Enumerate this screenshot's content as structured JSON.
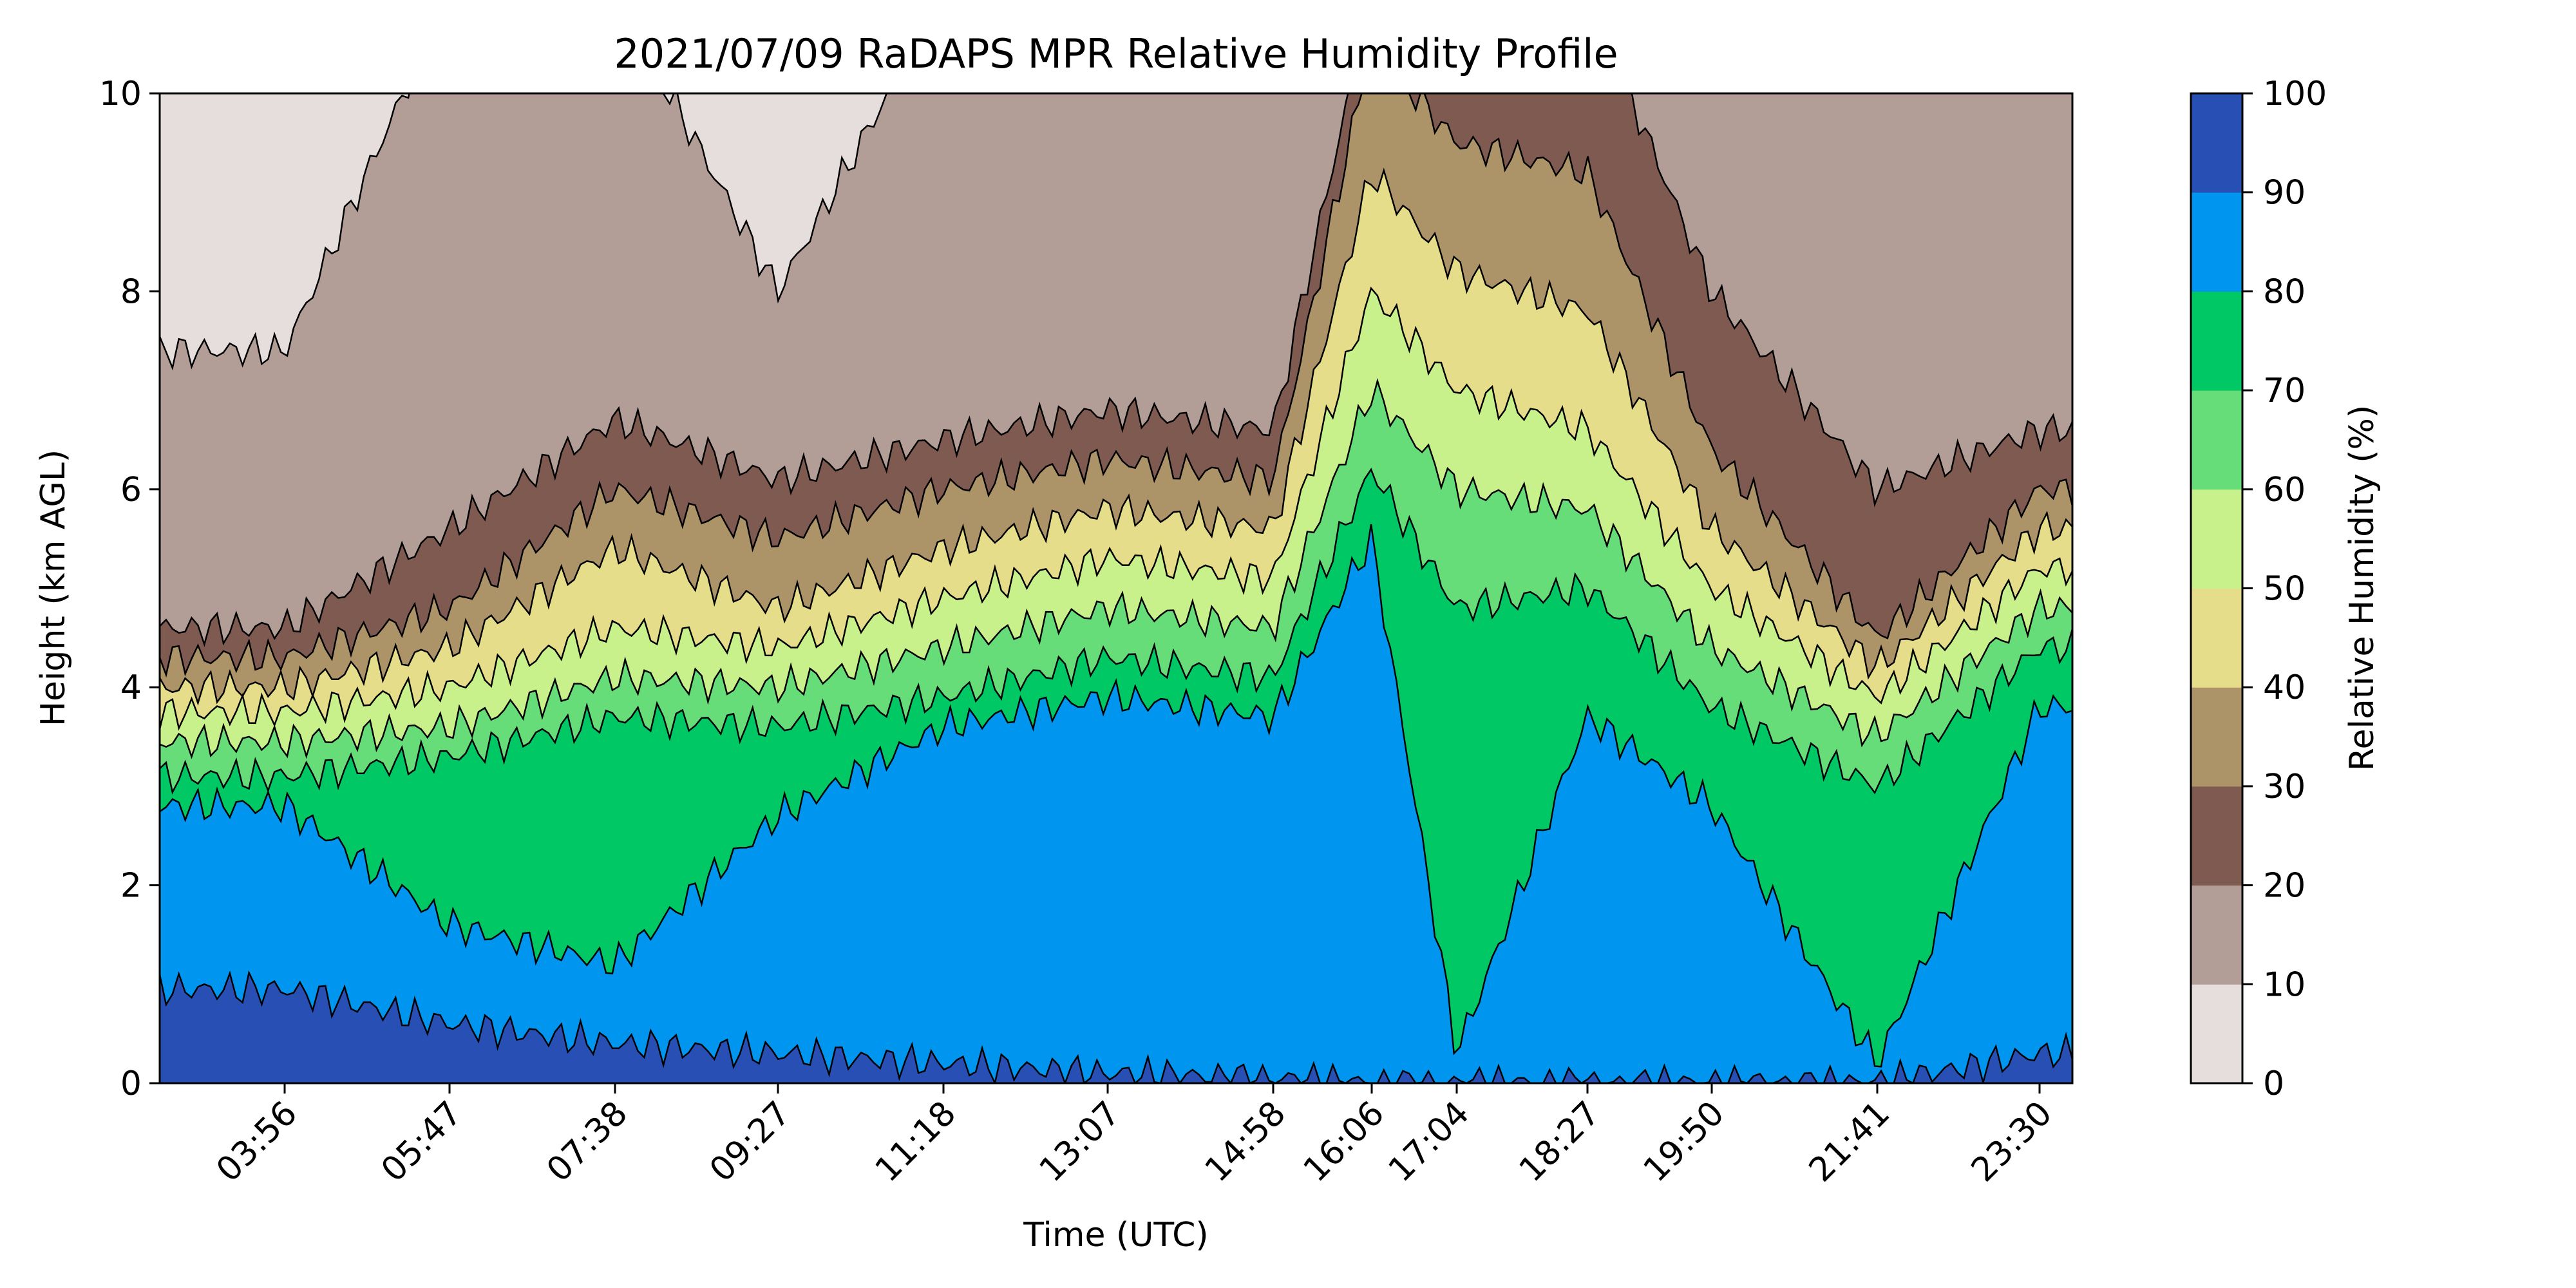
{
  "chart_data": {
    "type": "heatmap",
    "title": "2021/07/09 RaDAPS MPR Relative Humidity Profile",
    "xlabel": "Time (UTC)",
    "ylabel": "Height (km AGL)",
    "colorbar_label": "Relative Humidity (%)",
    "x_ticks": [
      "03:56",
      "05:47",
      "07:38",
      "09:27",
      "11:18",
      "13:07",
      "14:58",
      "16:06",
      "17:04",
      "18:27",
      "19:50",
      "21:41",
      "23:30"
    ],
    "y_ticks": [
      0,
      2,
      4,
      6,
      8,
      10
    ],
    "ylim": [
      0,
      10
    ],
    "colorbar_ticks": [
      0,
      10,
      20,
      30,
      40,
      50,
      60,
      70,
      80,
      90,
      100
    ],
    "levels": [
      0,
      10,
      20,
      30,
      40,
      50,
      60,
      70,
      80,
      90,
      100
    ],
    "level_colors": [
      "#e6dedc",
      "#b39d97",
      "#7f5a51",
      "#ad9468",
      "#e6dd8a",
      "#c8f18c",
      "#66dd78",
      "#00c864",
      "#0096f0",
      "#2850b4"
    ],
    "rh_profile_anchors": [
      {
        "t": "03:56",
        "b": [
          0.05,
          0.95,
          2.8,
          3.1,
          3.45,
          3.75,
          4.0,
          4.3,
          4.6,
          7.4
        ]
      },
      {
        "t": "05:47",
        "b": [
          0,
          0.6,
          1.6,
          3.3,
          3.6,
          4.0,
          4.4,
          4.8,
          5.6,
          11
        ]
      },
      {
        "t": "07:38",
        "b": [
          0,
          0.4,
          1.2,
          3.7,
          4.1,
          4.6,
          5.4,
          6.0,
          6.7,
          11
        ]
      },
      {
        "t": "09:27",
        "b": [
          0,
          0.3,
          2.7,
          3.6,
          4.0,
          4.4,
          4.8,
          5.5,
          6.1,
          8.0
        ]
      },
      {
        "t": "11:18",
        "b": [
          0,
          0.2,
          3.6,
          3.9,
          4.4,
          4.9,
          5.4,
          6.0,
          6.5,
          11
        ]
      },
      {
        "t": "13:07",
        "b": [
          0,
          0.1,
          3.9,
          4.3,
          4.8,
          5.3,
          5.8,
          6.3,
          6.8,
          11
        ]
      },
      {
        "t": "14:58",
        "b": [
          0,
          0.05,
          3.7,
          4.1,
          4.6,
          5.1,
          5.6,
          6.1,
          6.6,
          11
        ]
      },
      {
        "t": "16:06",
        "b": [
          0,
          0,
          5.5,
          6.2,
          7.0,
          8.0,
          9.2,
          10.5,
          11,
          11
        ]
      },
      {
        "t": "17:04",
        "b": [
          0,
          0,
          0.3,
          4.8,
          6.0,
          7.0,
          8.2,
          9.5,
          11,
          11
        ]
      },
      {
        "t": "18:27",
        "b": [
          0,
          0,
          3.7,
          5.0,
          5.8,
          6.6,
          7.8,
          9.2,
          11,
          11
        ]
      },
      {
        "t": "19:50",
        "b": [
          0,
          0,
          2.8,
          3.8,
          4.4,
          5.0,
          5.6,
          6.4,
          8.0,
          11
        ]
      },
      {
        "t": "21:41",
        "b": [
          0,
          0,
          0.2,
          3.0,
          3.5,
          3.9,
          4.2,
          4.5,
          6.0,
          11
        ]
      },
      {
        "t": "23:30",
        "b": [
          0,
          0.3,
          3.8,
          4.4,
          4.8,
          5.2,
          5.6,
          6.0,
          6.6,
          11
        ]
      }
    ]
  }
}
